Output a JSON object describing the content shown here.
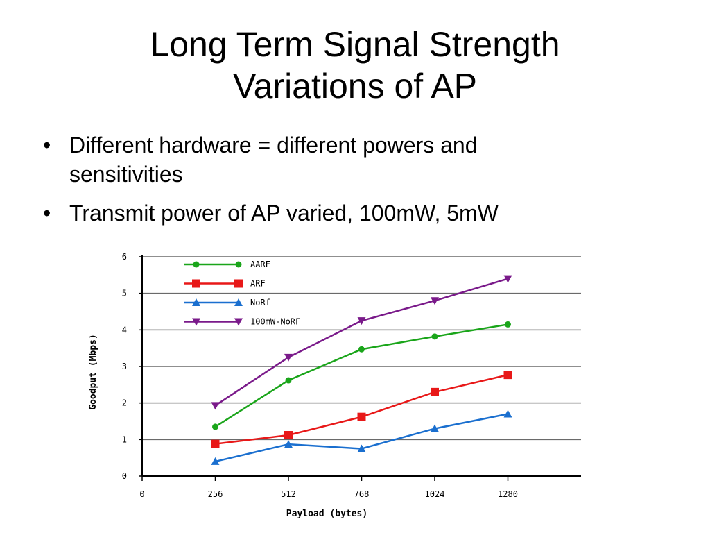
{
  "slide": {
    "title_line1": "Long Term Signal Strength",
    "title_line2": "Variations of AP",
    "bullet_symbol": "•",
    "bullets": [
      {
        "line1": "Different hardware = different powers and",
        "line2": "sensitivities"
      },
      {
        "line1": "Transmit power of AP varied, 100mW, 5mW",
        "line2": ""
      }
    ]
  },
  "chart_data": {
    "type": "line",
    "title": "",
    "xlabel": "Payload (bytes)",
    "ylabel": "Goodput (Mbps)",
    "xlim": [
      0,
      1536
    ],
    "ylim": [
      0,
      6
    ],
    "xticks": [
      0,
      256,
      512,
      768,
      1024,
      1280
    ],
    "yticks": [
      0,
      1,
      2,
      3,
      4,
      5,
      6
    ],
    "grid": "horizontal",
    "legend_position": "top-left",
    "x": [
      256,
      512,
      768,
      1024,
      1280
    ],
    "series": [
      {
        "name": "AARF",
        "values": [
          1.35,
          2.62,
          3.47,
          3.82,
          4.15
        ],
        "color": "#1aa51a",
        "marker": "circle"
      },
      {
        "name": "ARF",
        "values": [
          0.88,
          1.12,
          1.62,
          2.3,
          2.77
        ],
        "color": "#e81818",
        "marker": "square"
      },
      {
        "name": "NoRf",
        "values": [
          0.4,
          0.87,
          0.75,
          1.3,
          1.7
        ],
        "color": "#1a6fcf",
        "marker": "triangle-up"
      },
      {
        "name": "100mW-NoRF",
        "values": [
          1.93,
          3.25,
          4.25,
          4.8,
          5.4
        ],
        "color": "#7a1a8a",
        "marker": "triangle-down"
      }
    ]
  }
}
